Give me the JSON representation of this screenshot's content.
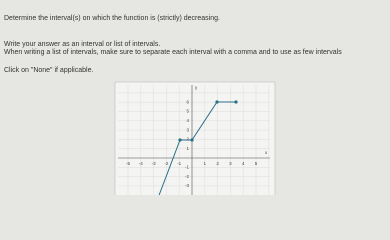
{
  "question": {
    "prompt": "Determine the interval(s) on which the function is (strictly) decreasing.",
    "instruction_1": "Write your answer as an interval or list of intervals.",
    "instruction_2": "When writing a list of intervals, make sure to separate each interval with a comma and to use as few intervals",
    "instruction_3": "Click on \"None\" if applicable."
  },
  "graph": {
    "x_axis_label": "x",
    "y_axis_label": "y",
    "x_tick_labels": [
      "-5",
      "-4",
      "-3",
      "-2",
      "-1",
      "1",
      "2",
      "3",
      "4",
      "5"
    ],
    "y_tick_labels": [
      "6",
      "5",
      "4",
      "3",
      "2",
      "1",
      "-1",
      "-2",
      "-3"
    ]
  }
}
